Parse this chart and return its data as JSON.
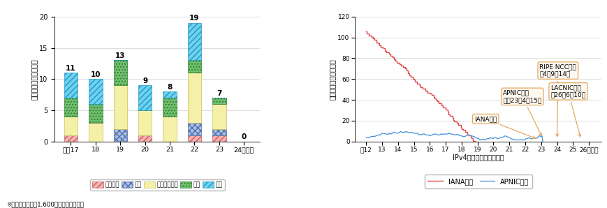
{
  "bar_years": [
    "平成17",
    "18",
    "19",
    "20",
    "21",
    "22",
    "23",
    "24（年）"
  ],
  "bar_totals": [
    11,
    10,
    13,
    9,
    8,
    19,
    7,
    0
  ],
  "bar_africa": [
    1,
    0,
    0,
    1,
    0,
    1,
    1,
    0
  ],
  "bar_south": [
    0,
    0,
    2,
    0,
    0,
    2,
    1,
    0
  ],
  "bar_asia": [
    3,
    3,
    7,
    4,
    4,
    8,
    4,
    0
  ],
  "bar_europe": [
    3,
    3,
    4,
    0,
    3,
    2,
    1,
    0
  ],
  "bar_north": [
    4,
    4,
    0,
    4,
    1,
    6,
    0,
    0
  ],
  "africa_fc": "#f5b0b0",
  "south_fc": "#aabfe0",
  "asia_fc": "#f5f0a8",
  "europe_fc": "#70c070",
  "north_fc": "#70d0f0",
  "africa_ec": "#c06060",
  "south_ec": "#5070b0",
  "asia_ec": "#c8c060",
  "europe_ec": "#308030",
  "north_ec": "#2098c0",
  "bar_ylim": [
    0,
    20
  ],
  "bar_yticks": [
    0,
    5,
    10,
    15,
    20
  ],
  "bar_ylabel": "アドレスブロックの数",
  "line_xlabel": "IPv4アドレス在庫の消費",
  "line_ylabel": "アドレスブロックの数",
  "line_ylim": [
    0,
    120
  ],
  "line_yticks": [
    0,
    20,
    40,
    60,
    80,
    100,
    120
  ],
  "line_xticks": [
    12,
    13,
    14,
    15,
    16,
    17,
    18,
    19,
    20,
    21,
    22,
    23,
    24,
    25,
    26
  ],
  "iana_color": "#e04848",
  "apnic_color": "#4090d8",
  "ann_fc": "#fff8ee",
  "ann_ec": "#e0a050",
  "bar_note": "※１ブロックは約1,600万のアドレス数。",
  "legend_africa": "アフリカ",
  "legend_south": "南米",
  "legend_asia": "アジア太平洋",
  "legend_europe": "欧州",
  "legend_north": "北米",
  "legend_iana": "IANA在庫",
  "legend_apnic": "APNIC在庫",
  "ann_iana": "IANA果渴",
  "ann_apnic": "APNIC果渴\n平成23年4月15日",
  "ann_ripe": "RIPE NCC果渴\n干4年9月14日",
  "ann_lacnic": "LACNIC果渴\n年26年6月10日"
}
